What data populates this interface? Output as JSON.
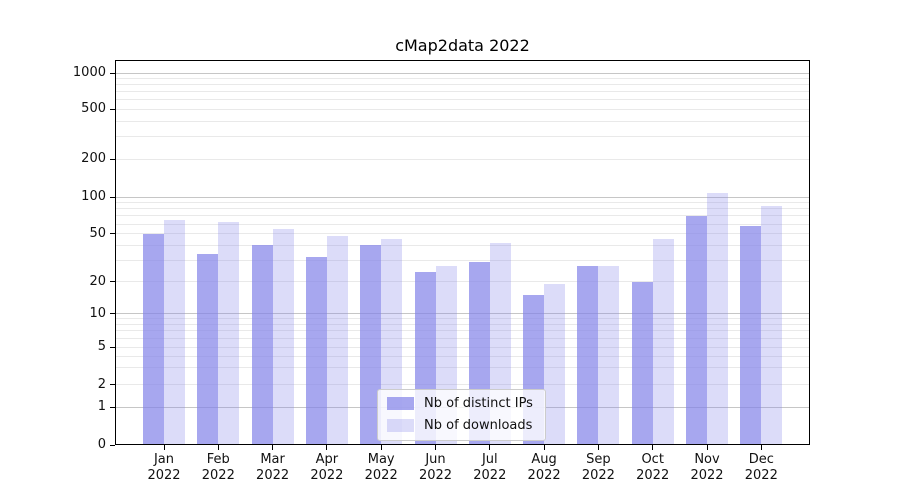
{
  "chart_data": {
    "type": "bar",
    "title": "cMap2data 2022",
    "categories": [
      "Jan",
      "Feb",
      "Mar",
      "Apr",
      "May",
      "Jun",
      "Jul",
      "Aug",
      "Sep",
      "Oct",
      "Nov",
      "Dec"
    ],
    "xtick_year_line": "2022",
    "series": [
      {
        "name": "Nb of distinct IPs",
        "values": [
          50,
          34,
          40,
          32,
          40,
          24,
          29,
          15,
          27,
          20,
          70,
          58
        ],
        "color": "#8282e8",
        "alpha": 0.7
      },
      {
        "name": "Nb of downloads",
        "values": [
          65,
          63,
          55,
          48,
          45,
          27,
          42,
          19,
          27,
          45,
          107,
          85
        ],
        "color": "#8282e8",
        "alpha": 0.28
      }
    ],
    "yticks": [
      0,
      1,
      2,
      5,
      10,
      20,
      50,
      100,
      200,
      500,
      1000
    ],
    "yscale": "log",
    "ylim": [
      0,
      1250
    ],
    "grid": true,
    "legend_position": "lower center"
  },
  "colors": {
    "background": "#ffffff",
    "axis": "#000000",
    "grid_major": "#c6c6c6",
    "grid_minor": "#e9e9e9",
    "text": "#111111",
    "legend_border": "#cccccc",
    "legend_bg": "#ffffff"
  }
}
